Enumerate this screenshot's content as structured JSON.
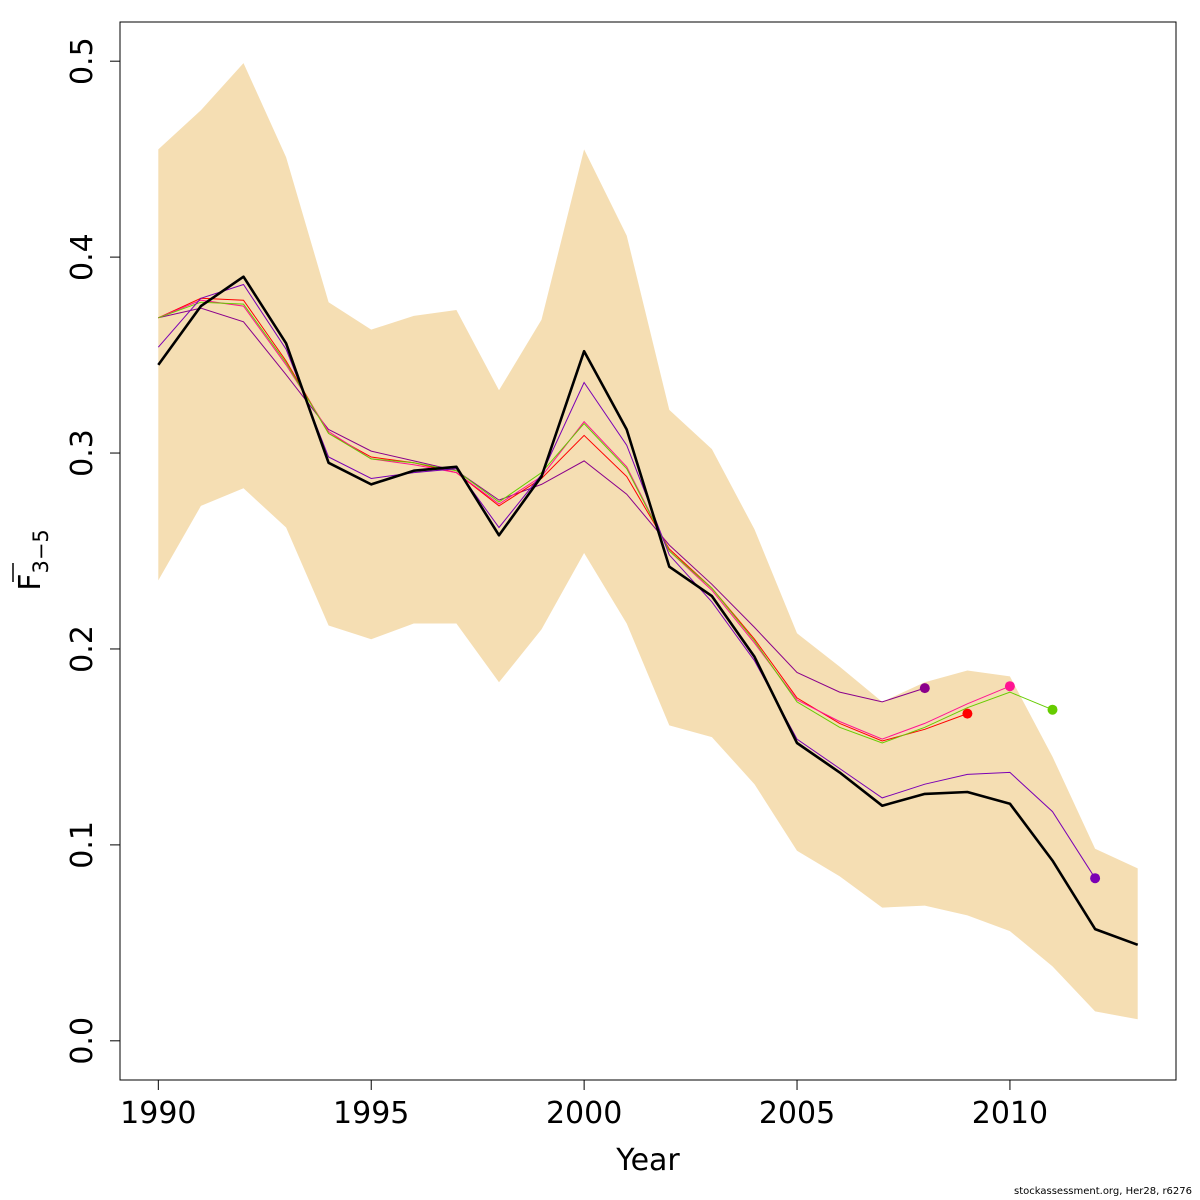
{
  "chart_data": {
    "type": "line",
    "xlabel": "Year",
    "ylabel": {
      "main": "F",
      "sub": "3−5"
    },
    "xlim": [
      1989.1,
      2013.9
    ],
    "ylim": [
      -0.02,
      0.52
    ],
    "xticks": [
      1990,
      1995,
      2000,
      2005,
      2010
    ],
    "yticks": [
      0.0,
      0.1,
      0.2,
      0.3,
      0.4,
      0.5
    ],
    "ytick_labels": [
      "0.0",
      "0.1",
      "0.2",
      "0.3",
      "0.4",
      "0.5"
    ],
    "band_color": "#F5DEB3",
    "confidence_band": {
      "x": [
        1990,
        1991,
        1992,
        1993,
        1994,
        1995,
        1996,
        1997,
        1998,
        1999,
        2000,
        2001,
        2002,
        2003,
        2004,
        2005,
        2006,
        2007,
        2008,
        2009,
        2010,
        2011,
        2012,
        2013
      ],
      "upper": [
        0.455,
        0.475,
        0.499,
        0.451,
        0.377,
        0.363,
        0.37,
        0.373,
        0.332,
        0.368,
        0.455,
        0.411,
        0.322,
        0.302,
        0.261,
        0.208,
        0.191,
        0.173,
        0.183,
        0.189,
        0.186,
        0.145,
        0.098,
        0.088
      ],
      "lower": [
        0.235,
        0.273,
        0.282,
        0.262,
        0.212,
        0.205,
        0.213,
        0.213,
        0.183,
        0.21,
        0.249,
        0.213,
        0.161,
        0.155,
        0.131,
        0.097,
        0.084,
        0.068,
        0.069,
        0.064,
        0.056,
        0.038,
        0.015,
        0.011
      ]
    },
    "main_series": {
      "color": "#000000",
      "x": [
        1990,
        1991,
        1992,
        1993,
        1994,
        1995,
        1996,
        1997,
        1998,
        1999,
        2000,
        2001,
        2002,
        2003,
        2004,
        2005,
        2006,
        2007,
        2008,
        2009,
        2010,
        2011,
        2012,
        2013
      ],
      "y": [
        0.345,
        0.375,
        0.39,
        0.356,
        0.295,
        0.284,
        0.291,
        0.293,
        0.258,
        0.288,
        0.352,
        0.312,
        0.242,
        0.227,
        0.196,
        0.152,
        0.137,
        0.12,
        0.126,
        0.127,
        0.121,
        0.092,
        0.057,
        0.049
      ]
    },
    "retro_series": [
      {
        "color": "#8B008B",
        "x": [
          1990,
          1991,
          1992,
          1993,
          1994,
          1995,
          1996,
          1997,
          1998,
          1999,
          2000,
          2001,
          2002,
          2003,
          2004,
          2005,
          2006,
          2007,
          2008
        ],
        "y": [
          0.369,
          0.374,
          0.367,
          0.34,
          0.312,
          0.301,
          0.296,
          0.291,
          0.276,
          0.284,
          0.296,
          0.279,
          0.253,
          0.233,
          0.211,
          0.188,
          0.178,
          0.173,
          0.18
        ]
      },
      {
        "color": "#FF0000",
        "x": [
          1990,
          1991,
          1992,
          1993,
          1994,
          1995,
          1996,
          1997,
          1998,
          1999,
          2000,
          2001,
          2002,
          2003,
          2004,
          2005,
          2006,
          2007,
          2008,
          2009
        ],
        "y": [
          0.369,
          0.379,
          0.378,
          0.347,
          0.31,
          0.298,
          0.295,
          0.29,
          0.273,
          0.287,
          0.309,
          0.288,
          0.251,
          0.231,
          0.205,
          0.175,
          0.162,
          0.153,
          0.159,
          0.167
        ]
      },
      {
        "color": "#FF1493",
        "x": [
          1990,
          1991,
          1992,
          1993,
          1994,
          1995,
          1996,
          1997,
          1998,
          1999,
          2000,
          2001,
          2002,
          2003,
          2004,
          2005,
          2006,
          2007,
          2008,
          2009,
          2010
        ],
        "y": [
          0.369,
          0.378,
          0.375,
          0.345,
          0.311,
          0.297,
          0.294,
          0.29,
          0.274,
          0.288,
          0.316,
          0.293,
          0.25,
          0.23,
          0.203,
          0.174,
          0.163,
          0.154,
          0.162,
          0.172,
          0.181
        ]
      },
      {
        "color": "#66CC00",
        "x": [
          1990,
          1991,
          1992,
          1993,
          1994,
          1995,
          1996,
          1997,
          1998,
          1999,
          2000,
          2001,
          2002,
          2003,
          2004,
          2005,
          2006,
          2007,
          2008,
          2009,
          2010,
          2011
        ],
        "y": [
          0.369,
          0.377,
          0.376,
          0.346,
          0.31,
          0.297,
          0.295,
          0.291,
          0.275,
          0.29,
          0.315,
          0.292,
          0.25,
          0.231,
          0.204,
          0.173,
          0.16,
          0.152,
          0.16,
          0.17,
          0.178,
          0.169
        ]
      },
      {
        "color": "#7B00B4",
        "x": [
          1990,
          1991,
          1992,
          1993,
          1994,
          1995,
          1996,
          1997,
          1998,
          1999,
          2000,
          2001,
          2002,
          2003,
          2004,
          2005,
          2006,
          2007,
          2008,
          2009,
          2010,
          2011,
          2012
        ],
        "y": [
          0.354,
          0.379,
          0.386,
          0.353,
          0.298,
          0.287,
          0.29,
          0.292,
          0.262,
          0.289,
          0.336,
          0.304,
          0.248,
          0.224,
          0.194,
          0.154,
          0.139,
          0.124,
          0.131,
          0.136,
          0.137,
          0.117,
          0.083
        ]
      }
    ]
  },
  "credit": "stockassessment.org, Her28, r6276"
}
